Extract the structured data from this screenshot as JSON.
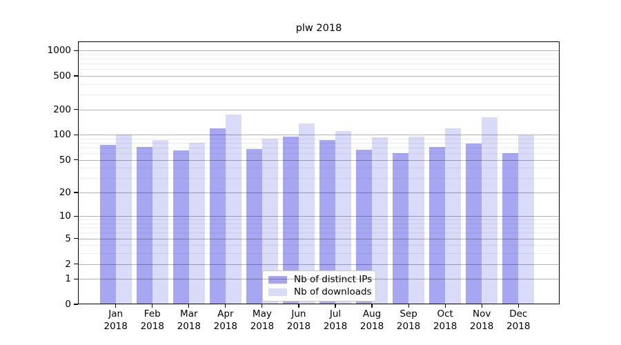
{
  "chart_data": {
    "type": "bar",
    "title": "plw 2018",
    "categories": [
      "Jan 2018",
      "Feb 2018",
      "Mar 2018",
      "Apr 2018",
      "May 2018",
      "Jun 2018",
      "Jul 2018",
      "Aug 2018",
      "Sep 2018",
      "Oct 2018",
      "Nov 2018",
      "Dec 2018"
    ],
    "series": [
      {
        "name": "Nb of distinct IPs",
        "color": "#a6a6f2",
        "values": [
          75,
          72,
          65,
          120,
          68,
          95,
          87,
          66,
          60,
          72,
          79,
          60
        ]
      },
      {
        "name": "Nb of downloads",
        "color": "#dadaf9",
        "values": [
          100,
          87,
          80,
          175,
          90,
          136,
          110,
          94,
          95,
          120,
          160,
          99
        ]
      }
    ],
    "y_axis": {
      "scale": "log1p",
      "ticks": [
        0,
        1,
        2,
        5,
        10,
        20,
        50,
        100,
        200,
        500,
        1000
      ],
      "minor_ticks": [
        3,
        4,
        6,
        7,
        8,
        9,
        30,
        40,
        60,
        70,
        80,
        90,
        300,
        400,
        600,
        700,
        800,
        900
      ],
      "max": 1282
    },
    "xlabel": "",
    "ylabel": "",
    "grid": true,
    "legend_position": "lower center"
  }
}
